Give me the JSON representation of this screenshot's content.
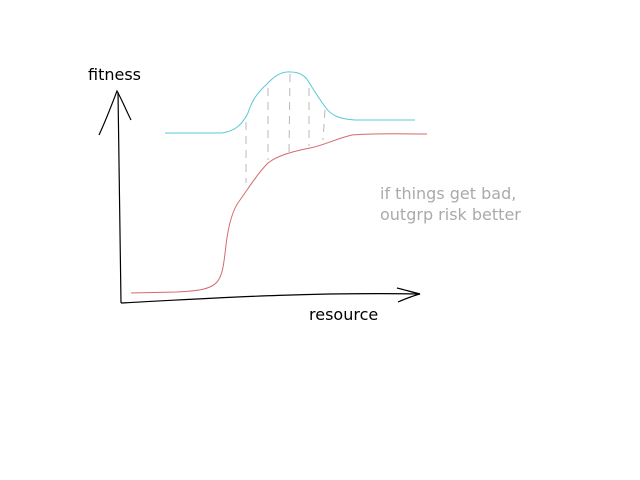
{
  "axes": {
    "y_label": "fitness",
    "x_label": "resource"
  },
  "annotation": {
    "lines": [
      "if things get bad,",
      "outgrp risk better"
    ]
  },
  "colors": {
    "axis": "#000000",
    "red_curve": "#d46a6a",
    "cyan_curve": "#5ac8d6",
    "hatch": "#b8b8b8",
    "annotation_text": "#aaaaaa",
    "label_text": "#000000",
    "background": "#ffffff"
  }
}
